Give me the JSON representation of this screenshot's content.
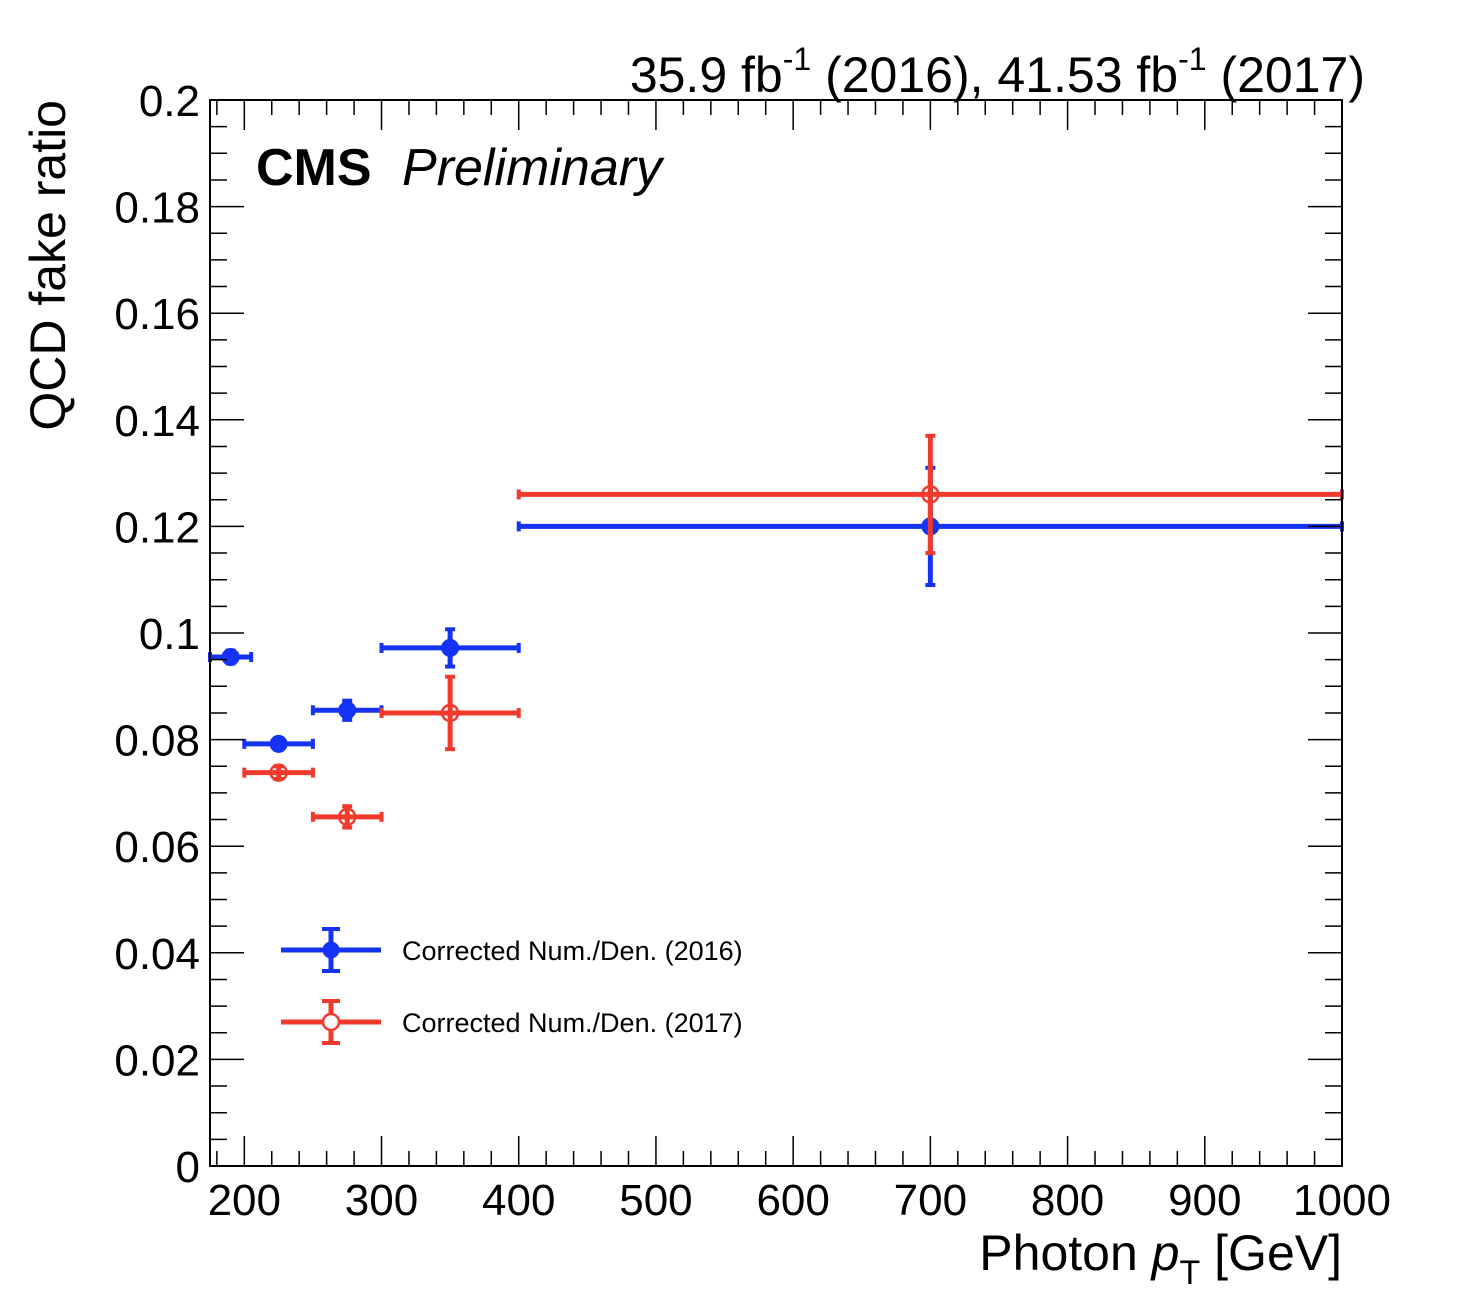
{
  "chart_data": {
    "type": "scatter",
    "lumi_label": {
      "lumi1": "35.9 fb",
      "sup1": "-1",
      "year1": " (2016), ",
      "lumi2": "41.53 fb",
      "sup2": "-1",
      "year2": " (2017)"
    },
    "cms_label": "CMS",
    "preliminary_label": "Preliminary",
    "xlabel": {
      "main": "Photon ",
      "var": "p",
      "sub": "T",
      "unit": " [GeV]"
    },
    "ylabel": "QCD fake ratio",
    "xlim": [
      175,
      1000
    ],
    "ylim": [
      0,
      0.2
    ],
    "x_ticks": [
      200,
      300,
      400,
      500,
      600,
      700,
      800,
      900,
      1000
    ],
    "x_tick_labels": [
      "200",
      "300",
      "400",
      "500",
      "600",
      "700",
      "800",
      "900",
      "1000"
    ],
    "y_ticks": [
      0,
      0.02,
      0.04,
      0.06,
      0.08,
      0.1,
      0.12,
      0.14,
      0.16,
      0.18,
      0.2
    ],
    "y_tick_labels": [
      "0",
      "0.02",
      "0.04",
      "0.06",
      "0.08",
      "0.1",
      "0.12",
      "0.14",
      "0.16",
      "0.18",
      "0.2"
    ],
    "legend_position": "bottom-left",
    "series": [
      {
        "name": "Corrected Num./Den. (2016)",
        "color": "#1433f5",
        "marker": "filled-circle",
        "points": [
          {
            "x": 190,
            "xlow": 175,
            "xhigh": 205,
            "y": 0.0955,
            "yerr": 0.0012
          },
          {
            "x": 225,
            "xlow": 200,
            "xhigh": 250,
            "y": 0.0792,
            "yerr": 0.0011
          },
          {
            "x": 275,
            "xlow": 250,
            "xhigh": 300,
            "y": 0.0855,
            "yerr": 0.0018
          },
          {
            "x": 350,
            "xlow": 300,
            "xhigh": 400,
            "y": 0.0972,
            "yerr": 0.0035
          },
          {
            "x": 700,
            "xlow": 400,
            "xhigh": 1000,
            "y": 0.12,
            "yerr": 0.011
          }
        ]
      },
      {
        "name": "Corrected Num./Den. (2017)",
        "color": "#f23a2c",
        "marker": "open-circle",
        "points": [
          {
            "x": 225,
            "xlow": 200,
            "xhigh": 250,
            "y": 0.0738,
            "yerr": 0.0012
          },
          {
            "x": 275,
            "xlow": 250,
            "xhigh": 300,
            "y": 0.0655,
            "yerr": 0.002
          },
          {
            "x": 350,
            "xlow": 300,
            "xhigh": 400,
            "y": 0.085,
            "yerr": 0.0068
          },
          {
            "x": 700,
            "xlow": 400,
            "xhigh": 1000,
            "y": 0.126,
            "yerr": 0.011
          }
        ]
      }
    ]
  }
}
